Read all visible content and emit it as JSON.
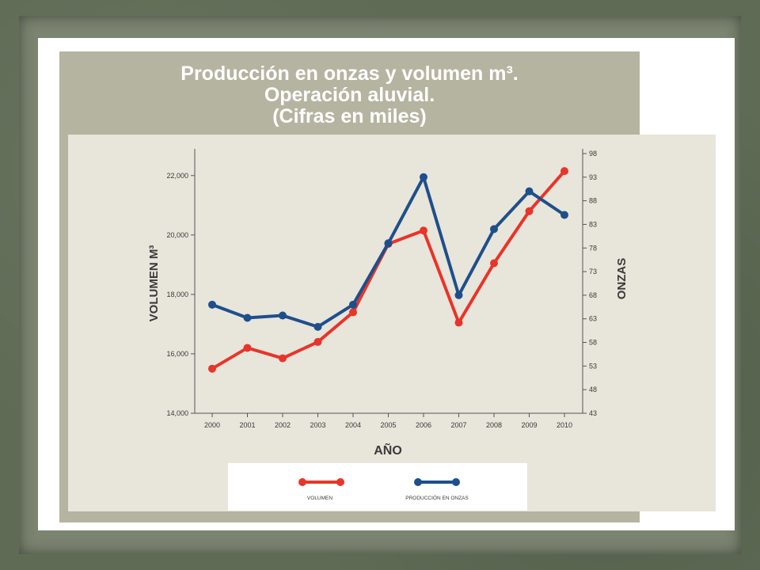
{
  "title": {
    "line1": "Producción en onzas y volumen m³.",
    "line2": "Operación aluvial.",
    "line3": "(Cifras en miles)"
  },
  "colors": {
    "volumen": "#e8352a",
    "onzas": "#1e4f8c",
    "axis": "#555555",
    "text": "#3a3a3a"
  },
  "chart_data": {
    "type": "line",
    "title": "Producción en onzas y volumen m³. Operación aluvial. (Cifras en miles)",
    "xlabel": "AÑO",
    "ylabel_left": "VOLUMEN M³",
    "ylabel_right": "ONZAS",
    "categories": [
      "2000",
      "2001",
      "2002",
      "2003",
      "2004",
      "2005",
      "2006",
      "2007",
      "2008",
      "2009",
      "2010"
    ],
    "y_left": {
      "range": [
        14000,
        22900
      ],
      "ticks": [
        14000,
        16000,
        18000,
        20000,
        22000
      ],
      "tick_labels": [
        "14,000",
        "16,000",
        "18,000",
        "20,000",
        "22,000"
      ]
    },
    "y_right": {
      "range": [
        43,
        99
      ],
      "ticks": [
        43,
        48,
        53,
        58,
        63,
        68,
        73,
        78,
        83,
        88,
        93,
        98
      ],
      "tick_labels": [
        "43",
        "48",
        "53",
        "58",
        "63",
        "68",
        "73",
        "78",
        "83",
        "88",
        "93",
        "98"
      ]
    },
    "series": [
      {
        "name": "VOLUMEN",
        "axis": "left",
        "values": [
          15500,
          16200,
          15850,
          16400,
          17400,
          19700,
          20150,
          17050,
          19050,
          20800,
          22150
        ]
      },
      {
        "name": "PRODUCCIÓN EN ONZAS",
        "axis": "right",
        "values": [
          66,
          63.2,
          63.7,
          61.3,
          66,
          79,
          93,
          68,
          82,
          90,
          85
        ]
      }
    ],
    "legend_position": "bottom",
    "grid": false
  }
}
